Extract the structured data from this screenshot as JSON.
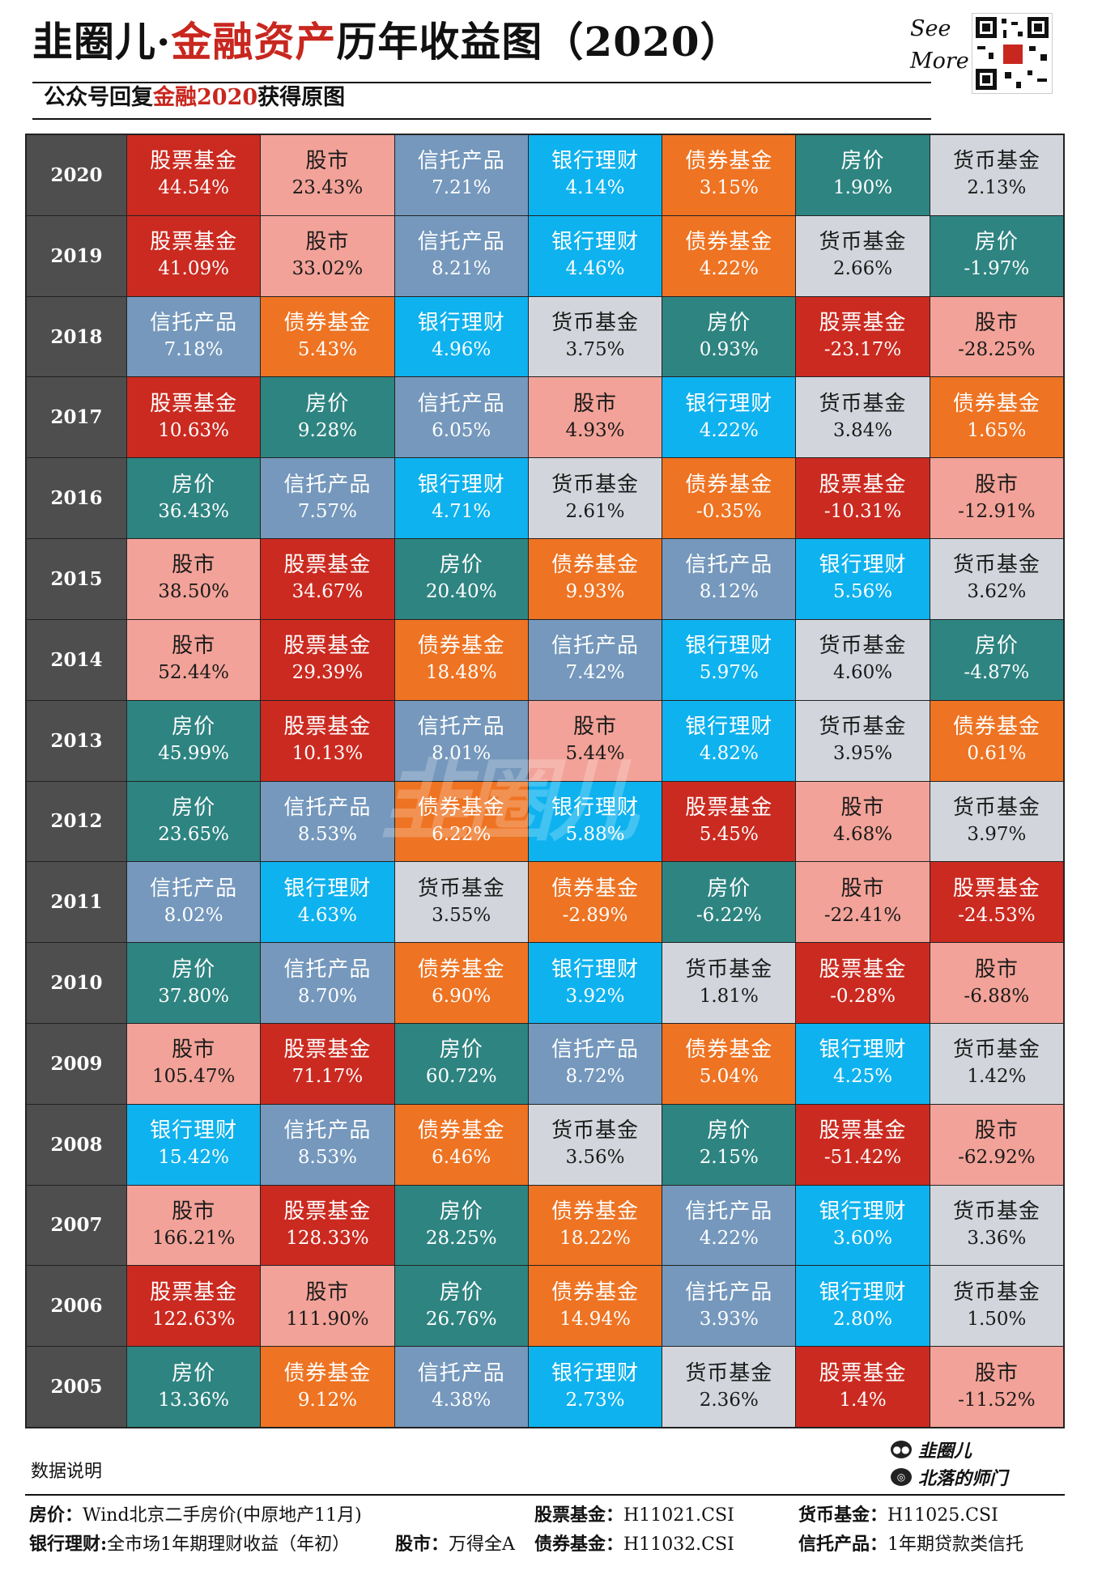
{
  "header": {
    "title_part1": "韭圈儿·",
    "title_accent": "金融资产",
    "title_part2": "历年收益图（2020）",
    "subtitle_part1": "公众号回复",
    "subtitle_accent": "金融2020",
    "subtitle_part2": "获得原图",
    "see_more_line1": "See",
    "see_more_line2": "More"
  },
  "colors": {
    "股票基金": "#cb2a20",
    "股市": "#f2a298",
    "信托产品": "#7598bc",
    "银行理财": "#0eb2ee",
    "债券基金": "#ee7322",
    "房价": "#2e8481",
    "货币基金": "#d2d6dc",
    "year_background": "#4e4e4e"
  },
  "chart_data": {
    "type": "table",
    "title": "韭圈儿·金融资产历年收益图（2020）",
    "unit": "%",
    "rows": [
      {
        "year": "2020",
        "cells": [
          [
            "股票基金",
            "44.54%"
          ],
          [
            "股市",
            "23.43%"
          ],
          [
            "信托产品",
            "7.21%"
          ],
          [
            "银行理财",
            "4.14%"
          ],
          [
            "债券基金",
            "3.15%"
          ],
          [
            "房价",
            "1.90%"
          ],
          [
            "货币基金",
            "2.13%"
          ]
        ]
      },
      {
        "year": "2019",
        "cells": [
          [
            "股票基金",
            "41.09%"
          ],
          [
            "股市",
            "33.02%"
          ],
          [
            "信托产品",
            "8.21%"
          ],
          [
            "银行理财",
            "4.46%"
          ],
          [
            "债券基金",
            "4.22%"
          ],
          [
            "货币基金",
            "2.66%"
          ],
          [
            "房价",
            "-1.97%"
          ]
        ]
      },
      {
        "year": "2018",
        "cells": [
          [
            "信托产品",
            "7.18%"
          ],
          [
            "债券基金",
            "5.43%"
          ],
          [
            "银行理财",
            "4.96%"
          ],
          [
            "货币基金",
            "3.75%"
          ],
          [
            "房价",
            "0.93%"
          ],
          [
            "股票基金",
            "-23.17%"
          ],
          [
            "股市",
            "-28.25%"
          ]
        ]
      },
      {
        "year": "2017",
        "cells": [
          [
            "股票基金",
            "10.63%"
          ],
          [
            "房价",
            "9.28%"
          ],
          [
            "信托产品",
            "6.05%"
          ],
          [
            "股市",
            "4.93%"
          ],
          [
            "银行理财",
            "4.22%"
          ],
          [
            "货币基金",
            "3.84%"
          ],
          [
            "债券基金",
            "1.65%"
          ]
        ]
      },
      {
        "year": "2016",
        "cells": [
          [
            "房价",
            "36.43%"
          ],
          [
            "信托产品",
            "7.57%"
          ],
          [
            "银行理财",
            "4.71%"
          ],
          [
            "货币基金",
            "2.61%"
          ],
          [
            "债券基金",
            "-0.35%"
          ],
          [
            "股票基金",
            "-10.31%"
          ],
          [
            "股市",
            "-12.91%"
          ]
        ]
      },
      {
        "year": "2015",
        "cells": [
          [
            "股市",
            "38.50%"
          ],
          [
            "股票基金",
            "34.67%"
          ],
          [
            "房价",
            "20.40%"
          ],
          [
            "债券基金",
            "9.93%"
          ],
          [
            "信托产品",
            "8.12%"
          ],
          [
            "银行理财",
            "5.56%"
          ],
          [
            "货币基金",
            "3.62%"
          ]
        ]
      },
      {
        "year": "2014",
        "cells": [
          [
            "股市",
            "52.44%"
          ],
          [
            "股票基金",
            "29.39%"
          ],
          [
            "债券基金",
            "18.48%"
          ],
          [
            "信托产品",
            "7.42%"
          ],
          [
            "银行理财",
            "5.97%"
          ],
          [
            "货币基金",
            "4.60%"
          ],
          [
            "房价",
            "-4.87%"
          ]
        ]
      },
      {
        "year": "2013",
        "cells": [
          [
            "房价",
            "45.99%"
          ],
          [
            "股票基金",
            "10.13%"
          ],
          [
            "信托产品",
            "8.01%"
          ],
          [
            "股市",
            "5.44%"
          ],
          [
            "银行理财",
            "4.82%"
          ],
          [
            "货币基金",
            "3.95%"
          ],
          [
            "债券基金",
            "0.61%"
          ]
        ]
      },
      {
        "year": "2012",
        "cells": [
          [
            "房价",
            "23.65%"
          ],
          [
            "信托产品",
            "8.53%"
          ],
          [
            "债券基金",
            "6.22%"
          ],
          [
            "银行理财",
            "5.88%"
          ],
          [
            "股票基金",
            "5.45%"
          ],
          [
            "股市",
            "4.68%"
          ],
          [
            "货币基金",
            "3.97%"
          ]
        ]
      },
      {
        "year": "2011",
        "cells": [
          [
            "信托产品",
            "8.02%"
          ],
          [
            "银行理财",
            "4.63%"
          ],
          [
            "货币基金",
            "3.55%"
          ],
          [
            "债券基金",
            "-2.89%"
          ],
          [
            "房价",
            "-6.22%"
          ],
          [
            "股市",
            "-22.41%"
          ],
          [
            "股票基金",
            "-24.53%"
          ]
        ]
      },
      {
        "year": "2010",
        "cells": [
          [
            "房价",
            "37.80%"
          ],
          [
            "信托产品",
            "8.70%"
          ],
          [
            "债券基金",
            "6.90%"
          ],
          [
            "银行理财",
            "3.92%"
          ],
          [
            "货币基金",
            "1.81%"
          ],
          [
            "股票基金",
            "-0.28%"
          ],
          [
            "股市",
            "-6.88%"
          ]
        ]
      },
      {
        "year": "2009",
        "cells": [
          [
            "股市",
            "105.47%"
          ],
          [
            "股票基金",
            "71.17%"
          ],
          [
            "房价",
            "60.72%"
          ],
          [
            "信托产品",
            "8.72%"
          ],
          [
            "债券基金",
            "5.04%"
          ],
          [
            "银行理财",
            "4.25%"
          ],
          [
            "货币基金",
            "1.42%"
          ]
        ]
      },
      {
        "year": "2008",
        "cells": [
          [
            "银行理财",
            "15.42%"
          ],
          [
            "信托产品",
            "8.53%"
          ],
          [
            "债券基金",
            "6.46%"
          ],
          [
            "货币基金",
            "3.56%"
          ],
          [
            "房价",
            "2.15%"
          ],
          [
            "股票基金",
            "-51.42%"
          ],
          [
            "股市",
            "-62.92%"
          ]
        ]
      },
      {
        "year": "2007",
        "cells": [
          [
            "股市",
            "166.21%"
          ],
          [
            "股票基金",
            "128.33%"
          ],
          [
            "房价",
            "28.25%"
          ],
          [
            "债券基金",
            "18.22%"
          ],
          [
            "信托产品",
            "4.22%"
          ],
          [
            "银行理财",
            "3.60%"
          ],
          [
            "货币基金",
            "3.36%"
          ]
        ]
      },
      {
        "year": "2006",
        "cells": [
          [
            "股票基金",
            "122.63%"
          ],
          [
            "股市",
            "111.90%"
          ],
          [
            "房价",
            "26.76%"
          ],
          [
            "债券基金",
            "14.94%"
          ],
          [
            "信托产品",
            "3.93%"
          ],
          [
            "银行理财",
            "2.80%"
          ],
          [
            "货币基金",
            "1.50%"
          ]
        ]
      },
      {
        "year": "2005",
        "cells": [
          [
            "房价",
            "13.36%"
          ],
          [
            "债券基金",
            "9.12%"
          ],
          [
            "信托产品",
            "4.38%"
          ],
          [
            "银行理财",
            "2.73%"
          ],
          [
            "货币基金",
            "2.36%"
          ],
          [
            "股票基金",
            "1.4%"
          ],
          [
            "股市",
            "-11.52%"
          ]
        ]
      }
    ]
  },
  "watermark": "韭圈儿",
  "footer": {
    "notes_heading": "数据说明",
    "brand_line1": "韭圈儿",
    "brand_line2": "北落的师门",
    "notes": {
      "house_key": "房价：",
      "house_val": "Wind北京二手房价(中原地产11月)",
      "bank_key": "银行理财:",
      "bank_val": "全市场1年期理财收益（年初）",
      "equity_fund_key": "股票基金：",
      "equity_fund_val": "H11021.CSI",
      "stock_key": "股市：",
      "stock_val": "万得全A",
      "bond_fund_key": "债券基金：",
      "bond_fund_val": "H11032.CSI",
      "money_fund_key": "货币基金：",
      "money_fund_val": "H11025.CSI",
      "trust_key": "信托产品：",
      "trust_val": "1年期贷款类信托"
    }
  }
}
